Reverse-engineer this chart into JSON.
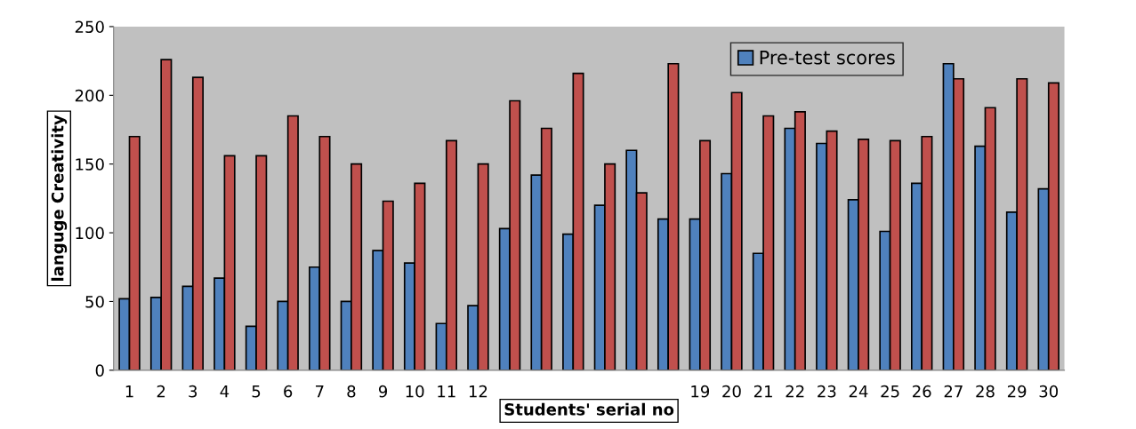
{
  "chart_data": {
    "type": "bar",
    "xlabel": "Students' serial no",
    "ylabel": "languge Creativity",
    "categories": [
      "1",
      "2",
      "3",
      "4",
      "5",
      "6",
      "7",
      "8",
      "9",
      "10",
      "11",
      "12",
      null,
      null,
      null,
      null,
      null,
      null,
      "19",
      "20",
      "21",
      "22",
      "23",
      "24",
      "25",
      "26",
      "27",
      "28",
      "29",
      "30"
    ],
    "series": [
      {
        "name": "Pre-test scores",
        "color": "#4f81bd",
        "values": [
          52,
          53,
          61,
          67,
          32,
          50,
          75,
          50,
          87,
          78,
          34,
          47,
          103,
          142,
          99,
          120,
          160,
          110,
          110,
          143,
          85,
          176,
          165,
          124,
          101,
          136,
          223,
          163,
          115,
          132
        ]
      },
      {
        "color": "#c0504d",
        "values": [
          170,
          226,
          213,
          156,
          156,
          185,
          170,
          150,
          123,
          136,
          167,
          150,
          196,
          176,
          216,
          150,
          129,
          223,
          167,
          202,
          185,
          188,
          174,
          168,
          167,
          170,
          212,
          191,
          212,
          209
        ]
      }
    ],
    "ylim": [
      0,
      250
    ],
    "yticks": [
      0,
      50,
      100,
      150,
      200,
      250
    ],
    "grid": false,
    "legend": "top right"
  }
}
